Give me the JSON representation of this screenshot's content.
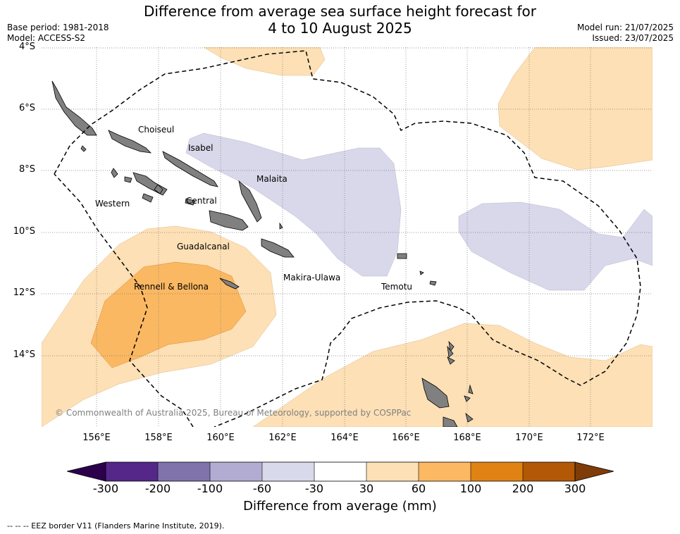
{
  "header": {
    "title_line1": "Difference from average sea surface height forecast for",
    "title_line2": "4 to 10 August 2025",
    "base_period": "Base period: 1981-2018",
    "model": "Model: ACCESS-S2",
    "model_run": "Model run: 21/07/2025",
    "issued": "Issued: 23/07/2025"
  },
  "map": {
    "lat_labels": [
      "4°S",
      "6°S",
      "8°S",
      "10°S",
      "12°S",
      "14°S"
    ],
    "lon_labels": [
      "156°E",
      "158°E",
      "160°E",
      "162°E",
      "164°E",
      "166°E",
      "168°E",
      "170°E",
      "172°E"
    ],
    "regions": {
      "choiseul": "Choiseul",
      "isabel": "Isabel",
      "malaita": "Malaita",
      "western": "Western",
      "central": "Central",
      "guadalcanal": "Guadalcanal",
      "makira": "Makira-Ulawa",
      "rennell": "Rennell & Bellona",
      "temotu": "Temotu"
    },
    "copyright": "© Commonwealth of Australia 2025, Bureau of Meteorology, supported by COSPPac",
    "colors": {
      "land": "#808080",
      "light_orange": "#fde0b5",
      "mid_orange": "#fbb862",
      "light_purple": "#d8d8ea"
    }
  },
  "colorbar": {
    "ticks": [
      "-300",
      "-200",
      "-100",
      "-60",
      "-30",
      "30",
      "60",
      "100",
      "200",
      "300"
    ],
    "colors": [
      "#542788",
      "#8073ac",
      "#b2abd2",
      "#d8daeb",
      "#ffffff",
      "#fee0b6",
      "#fdb863",
      "#e08214",
      "#b35806"
    ],
    "extend_low": "#2d004b",
    "extend_high": "#7f3b08",
    "title": "Difference from average (mm)"
  },
  "footer": {
    "legend": "--  --  -- EEZ border V11 (Flanders Marine Institute, 2019)."
  }
}
